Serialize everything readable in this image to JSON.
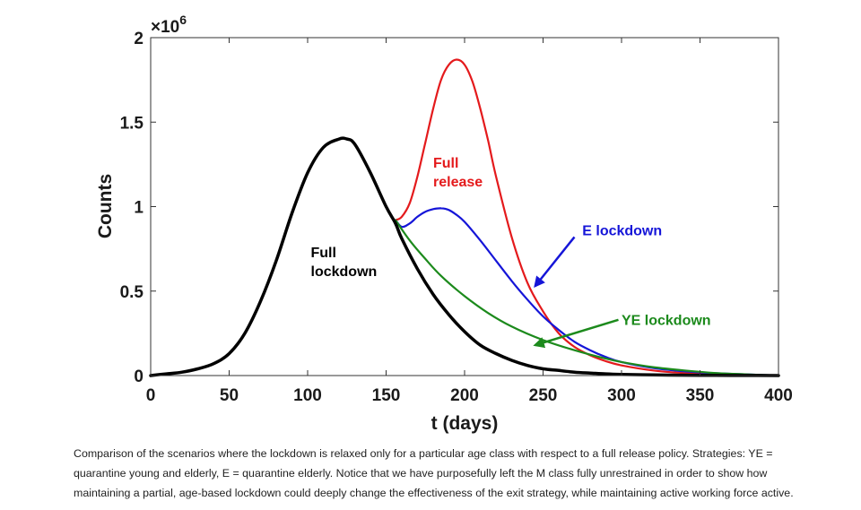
{
  "chart_data": {
    "type": "line",
    "xlabel": "t (days)",
    "ylabel": "Counts",
    "y_multiplier_label": "×10",
    "y_multiplier_exp": "6",
    "xlim": [
      0,
      400
    ],
    "ylim": [
      0,
      2
    ],
    "x_ticks": [
      0,
      50,
      100,
      150,
      200,
      250,
      300,
      350,
      400
    ],
    "y_ticks": [
      0,
      0.5,
      1,
      1.5,
      2
    ],
    "x_tick_labels": [
      "0",
      "50",
      "100",
      "150",
      "200",
      "250",
      "300",
      "350",
      "400"
    ],
    "y_tick_labels": [
      "0",
      "0.5",
      "1",
      "1.5",
      "2"
    ],
    "grid": false,
    "series": [
      {
        "key": "full_lockdown",
        "color": "#000000",
        "x": [
          0,
          10,
          20,
          30,
          40,
          50,
          60,
          70,
          80,
          90,
          100,
          110,
          120,
          125,
          130,
          140,
          150,
          156,
          160,
          170,
          180,
          190,
          200,
          210,
          220,
          230,
          240,
          250,
          260,
          270,
          280,
          290,
          300,
          320,
          340,
          360,
          380,
          400
        ],
        "y": [
          0,
          0.01,
          0.02,
          0.04,
          0.07,
          0.13,
          0.25,
          0.44,
          0.68,
          0.96,
          1.2,
          1.35,
          1.4,
          1.4,
          1.37,
          1.2,
          1.0,
          0.9,
          0.81,
          0.63,
          0.48,
          0.36,
          0.26,
          0.18,
          0.13,
          0.09,
          0.06,
          0.04,
          0.03,
          0.02,
          0.015,
          0.01,
          0.007,
          0.004,
          0.002,
          0.001,
          0.0005,
          0
        ]
      },
      {
        "key": "full_release",
        "color": "#e41a1c",
        "x": [
          156,
          160,
          165,
          170,
          175,
          180,
          185,
          190,
          195,
          200,
          205,
          210,
          215,
          220,
          230,
          240,
          250,
          260,
          270,
          280,
          290,
          300,
          320,
          340,
          360,
          380,
          400
        ],
        "y": [
          0.92,
          0.94,
          1.02,
          1.18,
          1.38,
          1.58,
          1.75,
          1.84,
          1.87,
          1.84,
          1.74,
          1.58,
          1.39,
          1.18,
          0.82,
          0.55,
          0.38,
          0.25,
          0.17,
          0.12,
          0.085,
          0.06,
          0.03,
          0.015,
          0.008,
          0.004,
          0
        ]
      },
      {
        "key": "e_lockdown",
        "color": "#1515d8",
        "x": [
          156,
          160,
          165,
          170,
          175,
          180,
          185,
          190,
          195,
          200,
          210,
          220,
          230,
          240,
          250,
          260,
          270,
          280,
          290,
          300,
          320,
          340,
          360,
          380,
          400
        ],
        "y": [
          0.92,
          0.88,
          0.9,
          0.94,
          0.97,
          0.985,
          0.99,
          0.98,
          0.95,
          0.91,
          0.8,
          0.68,
          0.56,
          0.45,
          0.35,
          0.27,
          0.2,
          0.15,
          0.11,
          0.08,
          0.045,
          0.025,
          0.014,
          0.007,
          0
        ]
      },
      {
        "key": "ye_lockdown",
        "color": "#1c8a1c",
        "x": [
          156,
          165,
          175,
          185,
          200,
          215,
          230,
          250,
          270,
          290,
          300,
          320,
          340,
          360,
          380,
          400
        ],
        "y": [
          0.92,
          0.8,
          0.69,
          0.59,
          0.47,
          0.37,
          0.29,
          0.21,
          0.15,
          0.1,
          0.08,
          0.05,
          0.03,
          0.015,
          0.007,
          0
        ]
      }
    ],
    "annotations": [
      {
        "key": "full_lockdown",
        "lines": [
          "Full",
          "lockdown"
        ],
        "color": "#000000",
        "x": 102,
        "y": 0.7
      },
      {
        "key": "full_release",
        "lines": [
          "Full",
          "release"
        ],
        "color": "#e41a1c",
        "x": 180,
        "y": 1.23
      },
      {
        "key": "e_lockdown",
        "lines": [
          "E lockdown"
        ],
        "color": "#1515d8",
        "x": 275,
        "y": 0.83,
        "arrow": {
          "from": [
            270,
            0.82
          ],
          "to": [
            245,
            0.53
          ]
        }
      },
      {
        "key": "ye_lockdown",
        "lines": [
          "YE lockdown"
        ],
        "color": "#1c8a1c",
        "x": 300,
        "y": 0.3,
        "arrow": {
          "from": [
            298,
            0.33
          ],
          "to": [
            245,
            0.18
          ]
        }
      }
    ]
  },
  "caption": "Comparison of the scenarios where the lockdown is relaxed only for a particular age class with respect to a full release policy. Strategies: YE = quarantine young and elderly, E = quarantine elderly. Notice that we have purposefully left the M class fully unrestrained in order to show how maintaining a partial, age-based lockdown could deeply change the effectiveness of the exit strategy, while maintaining active working force active."
}
